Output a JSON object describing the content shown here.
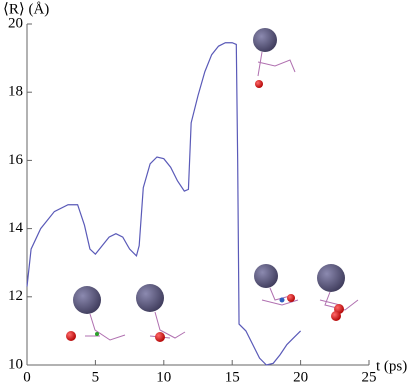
{
  "chart_data": {
    "type": "line",
    "ylabel": "⟨R⟩ (Å)",
    "xlabel": "t (ps)",
    "x": [
      0,
      0.3,
      1,
      2,
      3,
      3.7,
      4.2,
      4.6,
      5,
      5.5,
      6,
      6.5,
      7,
      7.5,
      8,
      8.2,
      8.5,
      9,
      9.5,
      10,
      10.5,
      11,
      11.5,
      11.8,
      12,
      12.5,
      13,
      13.5,
      14,
      14.5,
      15,
      15.3,
      15.4,
      15.5,
      16,
      16.5,
      17,
      17.5,
      18,
      18.5,
      19,
      19.5,
      20
    ],
    "values": [
      12.3,
      13.4,
      14.0,
      14.5,
      14.7,
      14.7,
      14.1,
      13.4,
      13.25,
      13.5,
      13.75,
      13.85,
      13.75,
      13.4,
      13.2,
      13.5,
      15.2,
      15.9,
      16.1,
      16.05,
      15.8,
      15.4,
      15.1,
      15.15,
      17.1,
      17.9,
      18.6,
      19.1,
      19.35,
      19.45,
      19.45,
      19.4,
      16.0,
      11.2,
      11.0,
      10.6,
      10.2,
      10.0,
      10.05,
      10.3,
      10.6,
      10.8,
      11.0
    ],
    "color": "#5a5ab8",
    "xlim": [
      0,
      25
    ],
    "xticks": [
      0,
      5,
      10,
      15,
      20,
      25
    ],
    "ylim": [
      10,
      20
    ],
    "yticks": [
      10,
      12,
      14,
      16,
      18,
      20
    ]
  }
}
